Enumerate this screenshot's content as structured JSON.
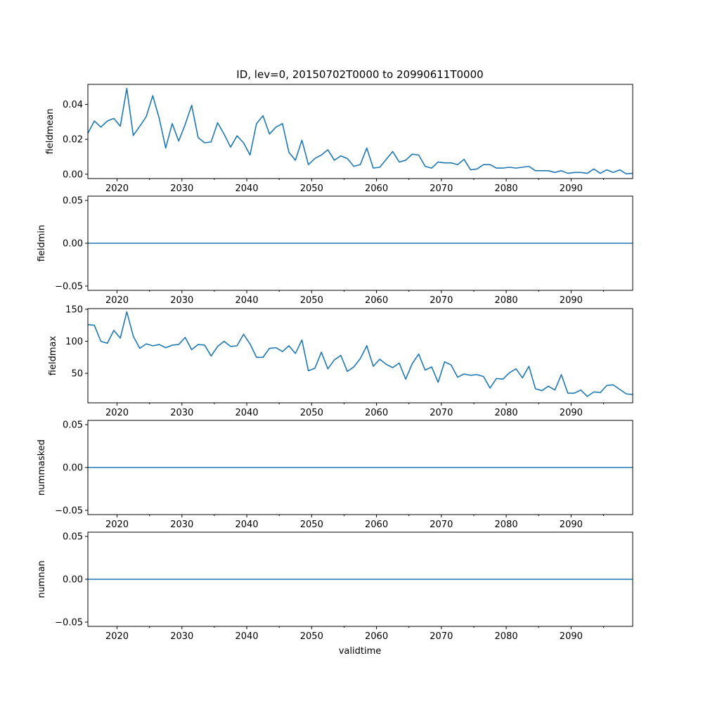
{
  "chart_data": {
    "type": "line",
    "title": "ID, lev=0, 20150702T0000 to 20990611T0000",
    "xlabel": "validtime",
    "xlim": [
      2015.5,
      2099.5
    ],
    "xticks": [
      2020,
      2030,
      2040,
      2050,
      2060,
      2070,
      2080,
      2090
    ],
    "x_minor_ticks": [
      2025,
      2035,
      2045,
      2055,
      2065,
      2075,
      2085,
      2095
    ],
    "line_color": "#1f77b4",
    "x": [
      2015.5,
      2016.5,
      2017.5,
      2018.5,
      2019.5,
      2020.5,
      2021.5,
      2022.5,
      2023.5,
      2024.5,
      2025.5,
      2026.5,
      2027.5,
      2028.5,
      2029.5,
      2030.5,
      2031.5,
      2032.5,
      2033.5,
      2034.5,
      2035.5,
      2036.5,
      2037.5,
      2038.5,
      2039.5,
      2040.5,
      2041.5,
      2042.5,
      2043.5,
      2044.5,
      2045.5,
      2046.5,
      2047.5,
      2048.5,
      2049.5,
      2050.5,
      2051.5,
      2052.5,
      2053.5,
      2054.5,
      2055.5,
      2056.5,
      2057.5,
      2058.5,
      2059.5,
      2060.5,
      2061.5,
      2062.5,
      2063.5,
      2064.5,
      2065.5,
      2066.5,
      2067.5,
      2068.5,
      2069.5,
      2070.5,
      2071.5,
      2072.5,
      2073.5,
      2074.5,
      2075.5,
      2076.5,
      2077.5,
      2078.5,
      2079.5,
      2080.5,
      2081.5,
      2082.5,
      2083.5,
      2084.5,
      2085.5,
      2086.5,
      2087.5,
      2088.5,
      2089.5,
      2090.5,
      2091.5,
      2092.5,
      2093.5,
      2094.5,
      2095.5,
      2096.5,
      2097.5,
      2098.5,
      2099.5
    ],
    "panels": [
      {
        "ylabel": "fieldmean",
        "ylim": [
          -0.0025,
          0.0515
        ],
        "yticks": [
          0.0,
          0.02,
          0.04
        ],
        "ytick_labels": [
          "0.00",
          "0.02",
          "0.04"
        ],
        "values": [
          0.0235,
          0.0305,
          0.027,
          0.0305,
          0.032,
          0.0275,
          0.0492,
          0.0222,
          0.0275,
          0.033,
          0.045,
          0.032,
          0.015,
          0.029,
          0.019,
          0.0285,
          0.0395,
          0.021,
          0.018,
          0.0185,
          0.0295,
          0.023,
          0.0155,
          0.022,
          0.018,
          0.011,
          0.029,
          0.0335,
          0.023,
          0.027,
          0.029,
          0.0125,
          0.008,
          0.0195,
          0.0055,
          0.009,
          0.011,
          0.014,
          0.008,
          0.0105,
          0.009,
          0.0045,
          0.0055,
          0.015,
          0.0035,
          0.004,
          0.0085,
          0.013,
          0.007,
          0.008,
          0.0115,
          0.011,
          0.0045,
          0.0035,
          0.007,
          0.0065,
          0.0065,
          0.0055,
          0.0085,
          0.0025,
          0.003,
          0.0055,
          0.0055,
          0.0035,
          0.0035,
          0.004,
          0.0035,
          0.004,
          0.0045,
          0.002,
          0.002,
          0.002,
          0.001,
          0.002,
          0.0005,
          0.001,
          0.001,
          0.0005,
          0.003,
          0.0005,
          0.0025,
          0.001,
          0.0025,
          0.0002,
          0.0005
        ]
      },
      {
        "ylabel": "fieldmin",
        "ylim": [
          -0.055,
          0.055
        ],
        "yticks": [
          -0.05,
          0.0,
          0.05
        ],
        "ytick_labels": [
          "−0.05",
          "0.00",
          "0.05"
        ],
        "constant": 0.0
      },
      {
        "ylabel": "fieldmax",
        "ylim": [
          4,
          151
        ],
        "yticks": [
          50,
          100,
          150
        ],
        "ytick_labels": [
          "50",
          "100",
          "150"
        ],
        "values": [
          126,
          125,
          100,
          97,
          117,
          105,
          146,
          108,
          89,
          96,
          93,
          95,
          90,
          94,
          95,
          106,
          87,
          95,
          94,
          77,
          92,
          100,
          92,
          93,
          111,
          96,
          75,
          75,
          89,
          90,
          84,
          93,
          81,
          102,
          54,
          58,
          83,
          57,
          71,
          78,
          53,
          60,
          73,
          93,
          61,
          72,
          64,
          59,
          66,
          41,
          65,
          80,
          55,
          60,
          36,
          68,
          63,
          44,
          49,
          47,
          48,
          45,
          27,
          42,
          41,
          51,
          57,
          43,
          61,
          26,
          23,
          30,
          24,
          48,
          19,
          19,
          24,
          14,
          21,
          20,
          31,
          32,
          25,
          18,
          17
        ]
      },
      {
        "ylabel": "nummasked",
        "ylim": [
          -0.055,
          0.055
        ],
        "yticks": [
          -0.05,
          0.0,
          0.05
        ],
        "ytick_labels": [
          "−0.05",
          "0.00",
          "0.05"
        ],
        "constant": 0.0
      },
      {
        "ylabel": "numnan",
        "ylim": [
          -0.055,
          0.055
        ],
        "yticks": [
          -0.05,
          0.0,
          0.05
        ],
        "ytick_labels": [
          "−0.05",
          "0.00",
          "0.05"
        ],
        "constant": 0.0
      }
    ]
  }
}
